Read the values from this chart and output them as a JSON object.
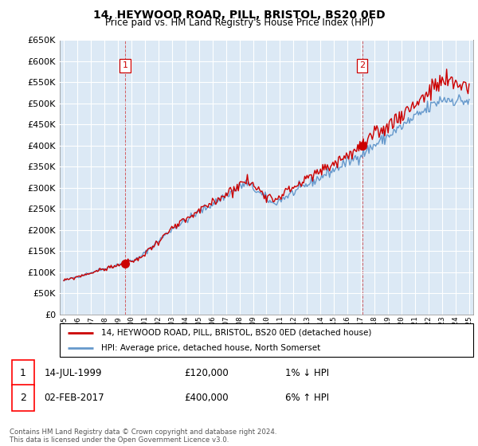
{
  "title": "14, HEYWOOD ROAD, PILL, BRISTOL, BS20 0ED",
  "subtitle": "Price paid vs. HM Land Registry's House Price Index (HPI)",
  "legend_line1": "14, HEYWOOD ROAD, PILL, BRISTOL, BS20 0ED (detached house)",
  "legend_line2": "HPI: Average price, detached house, North Somerset",
  "annotation1_label": "1",
  "annotation1_date": "14-JUL-1999",
  "annotation1_price": "£120,000",
  "annotation1_hpi": "1% ↓ HPI",
  "annotation2_label": "2",
  "annotation2_date": "02-FEB-2017",
  "annotation2_price": "£400,000",
  "annotation2_hpi": "6% ↑ HPI",
  "footer": "Contains HM Land Registry data © Crown copyright and database right 2024.\nThis data is licensed under the Open Government Licence v3.0.",
  "red_color": "#cc0000",
  "blue_color": "#6699cc",
  "marker1_x": 1999.54,
  "marker1_y": 120000,
  "marker2_x": 2017.08,
  "marker2_y": 400000,
  "ylim": [
    0,
    650000
  ],
  "xlim_start": 1994.7,
  "xlim_end": 2025.3,
  "ytick_step": 50000,
  "plot_bg_color": "#dce9f5",
  "fig_bg_color": "#ffffff",
  "grid_color": "#ffffff"
}
